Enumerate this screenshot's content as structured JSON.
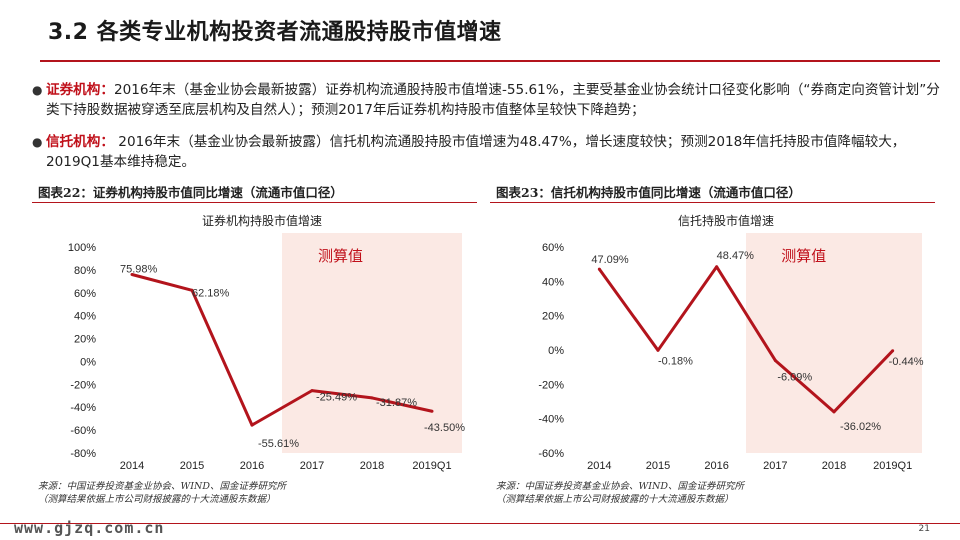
{
  "slide": {
    "title": "3.2 各类专业机构投资者流通股持股市值增速",
    "page_number": "21",
    "watermark": "www.gjzq.com.cn"
  },
  "bullets": [
    {
      "label": "证券机构：",
      "text": "2016年末（基金业协会最新披露）证券机构流通股持股市值增速-55.61%，主要受基金业协会统计口径变化影响（“券商定向资管计划”分类下持股数据被穿透至底层机构及自然人）；预测2017年后证券机构持股市值整体呈较快下降趋势；"
    },
    {
      "label": "信托机构：",
      "text": " 2016年末（基金业协会最新披露）信托机构流通股持股市值增速为48.47%，增长速度较快；预测2018年信托持股市值降幅较大，2019Q1基本维持稳定。"
    }
  ],
  "panels": [
    {
      "header": "图表22：证券机构持股市值同比增速（流通市值口径）",
      "source_line1": "来源：中国证券投资基金业协会、WIND、国金证券研究所",
      "source_line2": "（测算结果依据上市公司财报披露的十大流通股东数据）"
    },
    {
      "header": "图表23：信托机构持股市值同比增速（流通市值口径）",
      "source_line1": "来源：中国证券投资基金业协会、WIND、国金证券研究所",
      "source_line2": "（测算结果依据上市公司财报披露的十大流通股东数据）"
    }
  ],
  "chart_data": [
    {
      "type": "line",
      "title": "证券机构持股市值增速",
      "categories": [
        "2014",
        "2015",
        "2016",
        "2017",
        "2018",
        "2019Q1"
      ],
      "series": [
        {
          "values": [
            75.98,
            62.18,
            -55.61,
            -25.49,
            -31.87,
            -43.5
          ]
        }
      ],
      "data_labels": [
        "75.98%",
        "62.18%",
        "-55.61%",
        "-25.49%",
        "-31.87%",
        "-43.50%"
      ],
      "y_ticks": [
        "100%",
        "80%",
        "60%",
        "40%",
        "20%",
        "0%",
        "-20%",
        "-40%",
        "-60%",
        "-80%"
      ],
      "ylim": [
        -80,
        100
      ],
      "shaded_from": "2017",
      "shaded_label": "测算值",
      "line_color": "#b3141c",
      "shade_color": "#fbe9e4",
      "annotation_color": "#c0101a",
      "grid": false
    },
    {
      "type": "line",
      "title": "信托持股市值增速",
      "categories": [
        "2014",
        "2015",
        "2016",
        "2017",
        "2018",
        "2019Q1"
      ],
      "series": [
        {
          "values": [
            47.09,
            -0.18,
            48.47,
            -6.09,
            -36.02,
            -0.44
          ]
        }
      ],
      "data_labels": [
        "47.09%",
        "-0.18%",
        "48.47%",
        "-6.09%",
        "-36.02%",
        "-0.44%"
      ],
      "y_ticks": [
        "60%",
        "40%",
        "20%",
        "0%",
        "-20%",
        "-40%",
        "-60%"
      ],
      "ylim": [
        -60,
        60
      ],
      "shaded_from": "2017",
      "shaded_label": "测算值",
      "line_color": "#b3141c",
      "shade_color": "#fbe9e4",
      "annotation_color": "#c0101a",
      "grid": false
    }
  ]
}
